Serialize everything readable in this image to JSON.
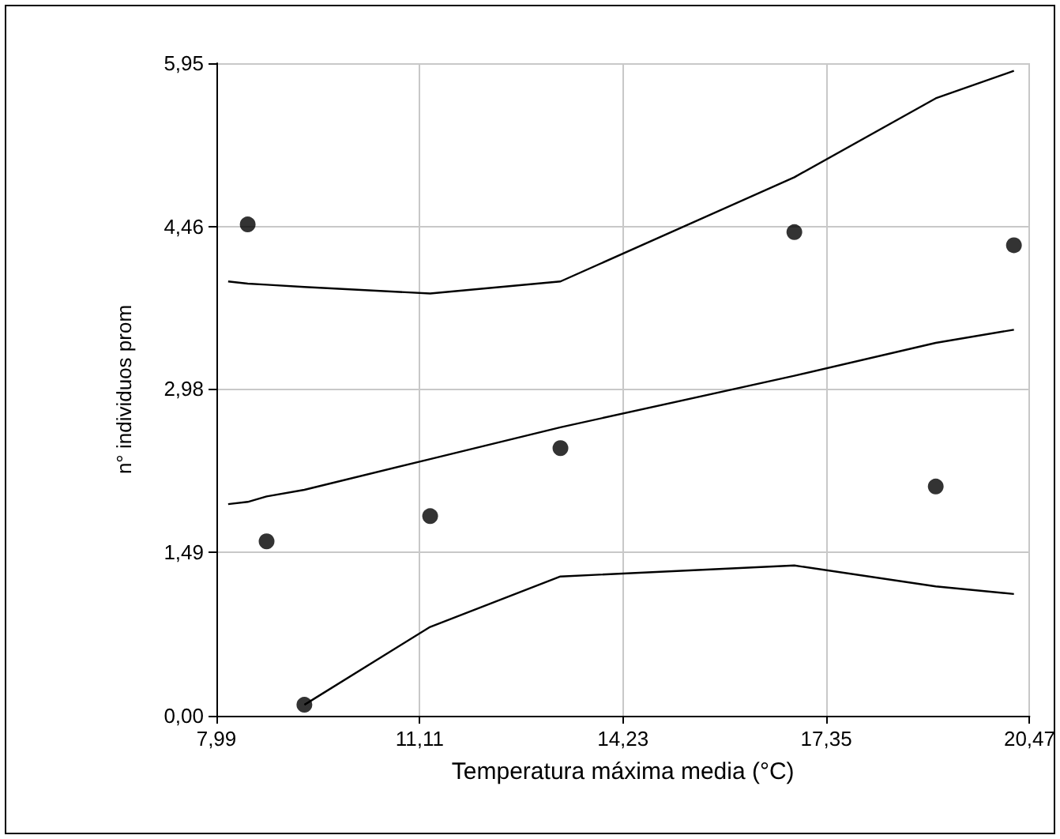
{
  "chart_data": {
    "type": "scatter",
    "xlabel": "Temperatura máxima media (°C)",
    "ylabel": "n° individuos prom",
    "xlim": [
      7.99,
      20.47
    ],
    "xticks": [
      {
        "value": 7.99,
        "label": "7,99"
      },
      {
        "value": 11.11,
        "label": "11,11"
      },
      {
        "value": 14.23,
        "label": "14,23"
      },
      {
        "value": 17.35,
        "label": "17,35"
      },
      {
        "value": 20.47,
        "label": "20,47"
      }
    ],
    "ylim": [
      0,
      5.95
    ],
    "yticks": [
      {
        "value": 0,
        "label": "0,00"
      },
      {
        "value": 1.49,
        "label": "1,49"
      },
      {
        "value": 2.98,
        "label": "2,98"
      },
      {
        "value": 4.46,
        "label": "4,46"
      },
      {
        "value": 5.95,
        "label": "5,95"
      }
    ],
    "grid": true,
    "marker": "circle",
    "series": [
      {
        "color": "#000000",
        "x": [
          8.47,
          8.76,
          9.34,
          11.27,
          13.27,
          16.86,
          19.03,
          20.23
        ],
        "values": [
          4.48,
          1.59,
          0.1,
          1.82,
          2.44,
          4.41,
          2.09,
          4.29
        ]
      },
      {
        "type": "line",
        "color": "#000000",
        "marker": "none",
        "line_style": "solid",
        "x": [
          8.17,
          8.47,
          8.76,
          9.34,
          11.27,
          13.27,
          16.86,
          19.03,
          20.23
        ],
        "values": [
          1.93,
          1.95,
          2.0,
          2.06,
          2.34,
          2.63,
          3.1,
          3.4,
          3.52
        ]
      },
      {
        "type": "line",
        "color": "#000000",
        "marker": "none",
        "line_style": "solid",
        "x": [
          8.17,
          8.47,
          8.76,
          9.34,
          11.27,
          13.27,
          16.86,
          19.03,
          20.23
        ],
        "values": [
          3.96,
          3.94,
          3.93,
          3.91,
          3.85,
          3.96,
          4.91,
          5.63,
          5.88
        ]
      },
      {
        "type": "line",
        "color": "#000000",
        "marker": "none",
        "line_style": "solid",
        "x": [
          9.34,
          11.27,
          13.27,
          16.86,
          19.03,
          20.23
        ],
        "values": [
          0.1,
          0.81,
          1.27,
          1.37,
          1.18,
          1.11
        ]
      }
    ]
  }
}
